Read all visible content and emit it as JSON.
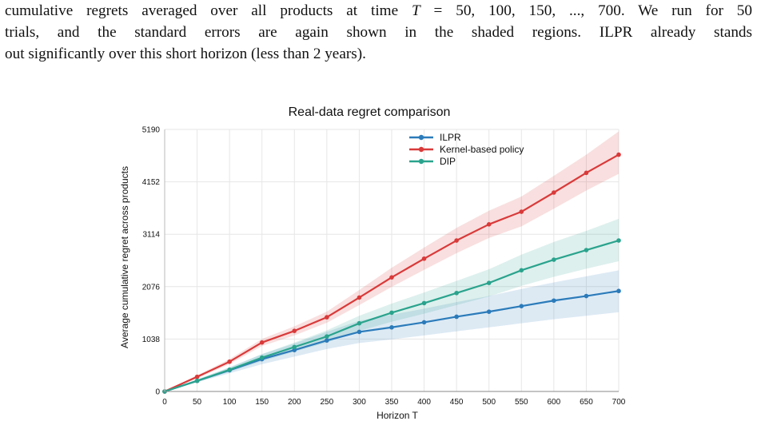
{
  "paragraph": {
    "line1_pre": "cumulative regrets averaged over all products at time ",
    "line1_math": "T",
    "line1_post": " = 50, 100, 150, ..., 700. We run for 50",
    "line2": "trials, and the standard errors are again shown in the shaded regions. ILPR already stands",
    "line3": "out significantly over this short horizon (less than 2 years)."
  },
  "chart_data": {
    "type": "line",
    "title": "Real-data regret comparison",
    "xlabel": "Horizon T",
    "ylabel": "Average cumulative regret across products",
    "x": [
      0,
      50,
      100,
      150,
      200,
      250,
      300,
      350,
      400,
      450,
      500,
      550,
      600,
      650,
      700
    ],
    "xticks": [
      "0",
      "50",
      "100",
      "150",
      "200",
      "250",
      "300",
      "350",
      "400",
      "450",
      "500",
      "550",
      "600",
      "650",
      "700"
    ],
    "yticks": [
      "0",
      "1038",
      "2076",
      "3114",
      "4152",
      "5190"
    ],
    "ylim": [
      0,
      5190
    ],
    "xlim": [
      0,
      700
    ],
    "grid": true,
    "legend_position": "top-center",
    "series": [
      {
        "name": "ILPR",
        "color": "#2b7bba",
        "values": [
          0,
          210,
          420,
          640,
          820,
          1010,
          1180,
          1270,
          1370,
          1480,
          1580,
          1690,
          1800,
          1890,
          1990
        ],
        "band_lower": [
          0,
          180,
          360,
          540,
          690,
          840,
          960,
          1030,
          1110,
          1190,
          1270,
          1350,
          1430,
          1500,
          1570
        ],
        "band_upper": [
          0,
          240,
          480,
          740,
          950,
          1180,
          1400,
          1520,
          1640,
          1770,
          1890,
          2030,
          2160,
          2280,
          2400
        ]
      },
      {
        "name": "Kernel-based policy",
        "color": "#d93a3a",
        "values": [
          0,
          290,
          590,
          970,
          1200,
          1470,
          1860,
          2260,
          2630,
          2990,
          3310,
          3560,
          3940,
          4330,
          4690
        ],
        "band_lower": [
          0,
          260,
          540,
          900,
          1110,
          1360,
          1710,
          2070,
          2410,
          2740,
          3040,
          3270,
          3620,
          3980,
          4310
        ],
        "band_upper": [
          0,
          320,
          640,
          1040,
          1290,
          1580,
          2010,
          2450,
          2850,
          3240,
          3580,
          3860,
          4270,
          4690,
          5150
        ]
      },
      {
        "name": "DIP",
        "color": "#2aa38d",
        "values": [
          0,
          210,
          430,
          670,
          880,
          1090,
          1350,
          1560,
          1750,
          1950,
          2150,
          2400,
          2610,
          2800,
          2990
        ],
        "band_lower": [
          0,
          190,
          390,
          600,
          790,
          970,
          1200,
          1380,
          1540,
          1710,
          1880,
          2090,
          2270,
          2430,
          2580
        ],
        "band_upper": [
          0,
          230,
          470,
          740,
          970,
          1210,
          1500,
          1740,
          1960,
          2190,
          2420,
          2710,
          2960,
          3180,
          3420
        ]
      }
    ]
  }
}
